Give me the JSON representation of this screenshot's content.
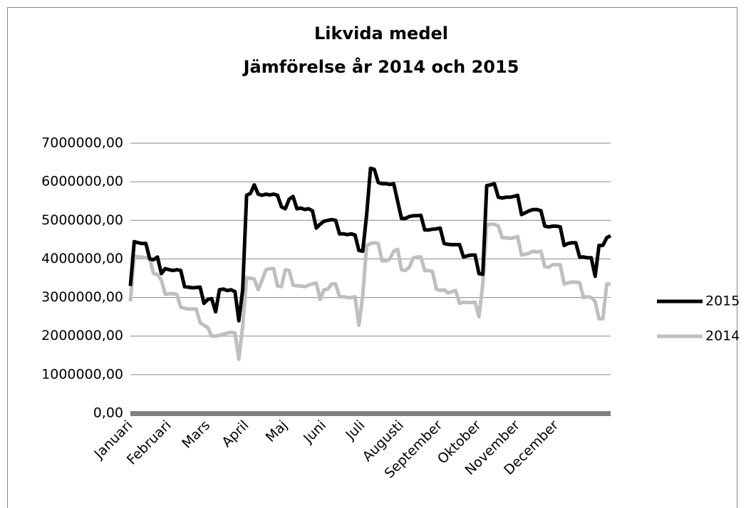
{
  "chart_data": {
    "type": "line",
    "title": "Likvida medel",
    "subtitle": "Jämförelse år 2014 och 2015",
    "categories": [
      "Januari",
      null,
      null,
      null,
      null,
      null,
      null,
      null,
      null,
      null,
      "Februari",
      null,
      null,
      null,
      null,
      null,
      null,
      null,
      null,
      null,
      "Mars",
      null,
      null,
      null,
      null,
      null,
      null,
      null,
      null,
      null,
      "April",
      null,
      null,
      null,
      null,
      null,
      null,
      null,
      null,
      null,
      "Maj",
      null,
      null,
      null,
      null,
      null,
      null,
      null,
      null,
      null,
      "Juni",
      null,
      null,
      null,
      null,
      null,
      null,
      null,
      null,
      null,
      "Juli",
      null,
      null,
      null,
      null,
      null,
      null,
      null,
      null,
      null,
      "Augusti",
      null,
      null,
      null,
      null,
      null,
      null,
      null,
      null,
      null,
      "September",
      null,
      null,
      null,
      null,
      null,
      null,
      null,
      null,
      null,
      "Oktober",
      null,
      null,
      null,
      null,
      null,
      null,
      null,
      null,
      null,
      "November",
      null,
      null,
      null,
      null,
      null,
      null,
      null,
      null,
      null,
      "December",
      null,
      null,
      null,
      null,
      null,
      null,
      null,
      null,
      null,
      null,
      null,
      null,
      null,
      null
    ],
    "series": [
      {
        "name": "2015",
        "color": "#000000",
        "values": [
          3300000,
          4450000,
          4420000,
          4400000,
          4400000,
          4000000,
          3980000,
          4050000,
          3620000,
          3750000,
          3720000,
          3700000,
          3720000,
          3700000,
          3280000,
          3270000,
          3250000,
          3260000,
          3270000,
          2850000,
          2950000,
          2970000,
          2630000,
          3200000,
          3220000,
          3180000,
          3200000,
          3150000,
          2400000,
          3200000,
          5650000,
          5700000,
          5920000,
          5680000,
          5650000,
          5680000,
          5660000,
          5680000,
          5650000,
          5350000,
          5300000,
          5550000,
          5620000,
          5300000,
          5320000,
          5280000,
          5300000,
          5250000,
          4800000,
          4900000,
          4980000,
          5000000,
          5020000,
          5000000,
          4650000,
          4650000,
          4630000,
          4650000,
          4620000,
          4220000,
          4200000,
          5150000,
          6350000,
          6320000,
          5980000,
          5950000,
          5950000,
          5930000,
          5950000,
          5500000,
          5050000,
          5050000,
          5100000,
          5120000,
          5120000,
          5130000,
          4750000,
          4750000,
          4770000,
          4780000,
          4800000,
          4400000,
          4380000,
          4370000,
          4370000,
          4370000,
          4050000,
          4080000,
          4100000,
          4100000,
          3620000,
          3600000,
          5900000,
          5920000,
          5950000,
          5600000,
          5580000,
          5600000,
          5600000,
          5620000,
          5650000,
          5150000,
          5200000,
          5250000,
          5280000,
          5280000,
          5250000,
          4850000,
          4830000,
          4850000,
          4850000,
          4830000,
          4350000,
          4400000,
          4420000,
          4420000,
          4050000,
          4050000,
          4030000,
          4030000,
          3550000,
          4350000,
          4350000,
          4550000,
          4600000
        ]
      },
      {
        "name": "2014",
        "color": "#bfbfbf",
        "values": [
          2900000,
          4080000,
          4050000,
          4050000,
          4030000,
          4000000,
          3620000,
          3600000,
          3450000,
          3080000,
          3100000,
          3100000,
          3080000,
          2750000,
          2720000,
          2700000,
          2700000,
          2700000,
          2350000,
          2280000,
          2220000,
          2000000,
          2000000,
          2020000,
          2050000,
          2080000,
          2100000,
          2080000,
          1400000,
          2250000,
          3520000,
          3500000,
          3480000,
          3200000,
          3450000,
          3720000,
          3750000,
          3750000,
          3300000,
          3280000,
          3720000,
          3700000,
          3320000,
          3300000,
          3300000,
          3280000,
          3320000,
          3350000,
          3380000,
          2950000,
          3200000,
          3220000,
          3350000,
          3350000,
          3020000,
          3020000,
          3000000,
          3000000,
          3020000,
          2280000,
          3050000,
          4350000,
          4400000,
          4420000,
          4400000,
          3950000,
          3950000,
          4000000,
          4200000,
          4250000,
          3720000,
          3700000,
          3780000,
          4020000,
          4050000,
          4050000,
          3700000,
          3700000,
          3680000,
          3220000,
          3180000,
          3200000,
          3120000,
          3150000,
          3180000,
          2850000,
          2880000,
          2870000,
          2870000,
          2880000,
          2500000,
          3350000,
          4880000,
          4900000,
          4900000,
          4850000,
          4550000,
          4550000,
          4530000,
          4550000,
          4580000,
          4100000,
          4120000,
          4150000,
          4200000,
          4180000,
          4200000,
          3800000,
          3780000,
          3850000,
          3850000,
          3850000,
          3350000,
          3380000,
          3400000,
          3400000,
          3380000,
          3000000,
          3020000,
          3000000,
          2900000,
          2450000,
          2450000,
          3350000,
          3350000
        ]
      }
    ],
    "ylim": [
      0,
      7000000
    ],
    "yticks": [
      {
        "value": 0,
        "label": "0,00"
      },
      {
        "value": 1000000,
        "label": "1000000,00"
      },
      {
        "value": 2000000,
        "label": "2000000,00"
      },
      {
        "value": 3000000,
        "label": "3000000,00"
      },
      {
        "value": 4000000,
        "label": "4000000,00"
      },
      {
        "value": 5000000,
        "label": "5000000,00"
      },
      {
        "value": 6000000,
        "label": "6000000,00"
      },
      {
        "value": 7000000,
        "label": "7000000,00"
      }
    ],
    "grid": true,
    "legend": "right"
  }
}
